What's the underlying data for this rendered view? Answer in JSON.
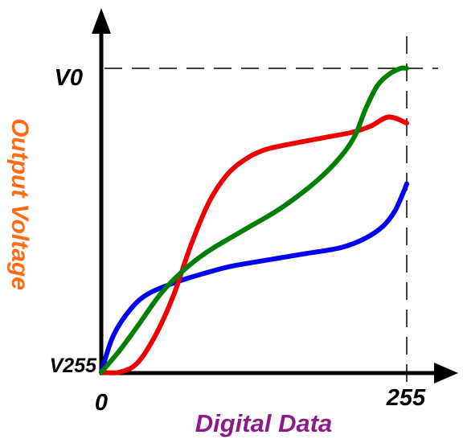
{
  "chart_data": {
    "type": "line",
    "xlabel": "Digital Data",
    "ylabel": "Output Voltage",
    "x_ticks": [
      "0",
      "255"
    ],
    "y_ticks": [
      "V255",
      "V0"
    ],
    "xlim": [
      0,
      255
    ],
    "ylim": [
      0,
      1
    ],
    "grid": false,
    "colors": {
      "xlabel": "#8B1A8B",
      "ylabel": "#FF6A13",
      "axis": "#000000"
    },
    "series": [
      {
        "color": "#0000EE",
        "x": [
          0,
          10,
          25,
          40,
          65,
          90,
          110,
          140,
          170,
          200,
          220,
          235,
          245,
          252,
          255
        ],
        "y": [
          0.0,
          0.12,
          0.21,
          0.26,
          0.3,
          0.33,
          0.35,
          0.37,
          0.39,
          0.41,
          0.44,
          0.48,
          0.53,
          0.59,
          0.62
        ]
      },
      {
        "color": "#EE0000",
        "x": [
          0,
          15,
          30,
          45,
          60,
          75,
          90,
          105,
          120,
          135,
          150,
          170,
          190,
          210,
          225,
          240,
          255
        ],
        "y": [
          0.0,
          0.0,
          0.03,
          0.12,
          0.25,
          0.42,
          0.56,
          0.65,
          0.7,
          0.73,
          0.745,
          0.76,
          0.775,
          0.79,
          0.81,
          0.84,
          0.82
        ]
      },
      {
        "color": "#007F00",
        "x": [
          0,
          15,
          30,
          50,
          70,
          90,
          120,
          150,
          180,
          200,
          212,
          220,
          230,
          240,
          250,
          255
        ],
        "y": [
          0.0,
          0.07,
          0.15,
          0.26,
          0.34,
          0.4,
          0.47,
          0.54,
          0.63,
          0.71,
          0.78,
          0.86,
          0.94,
          0.98,
          1.0,
          1.0
        ]
      }
    ]
  }
}
